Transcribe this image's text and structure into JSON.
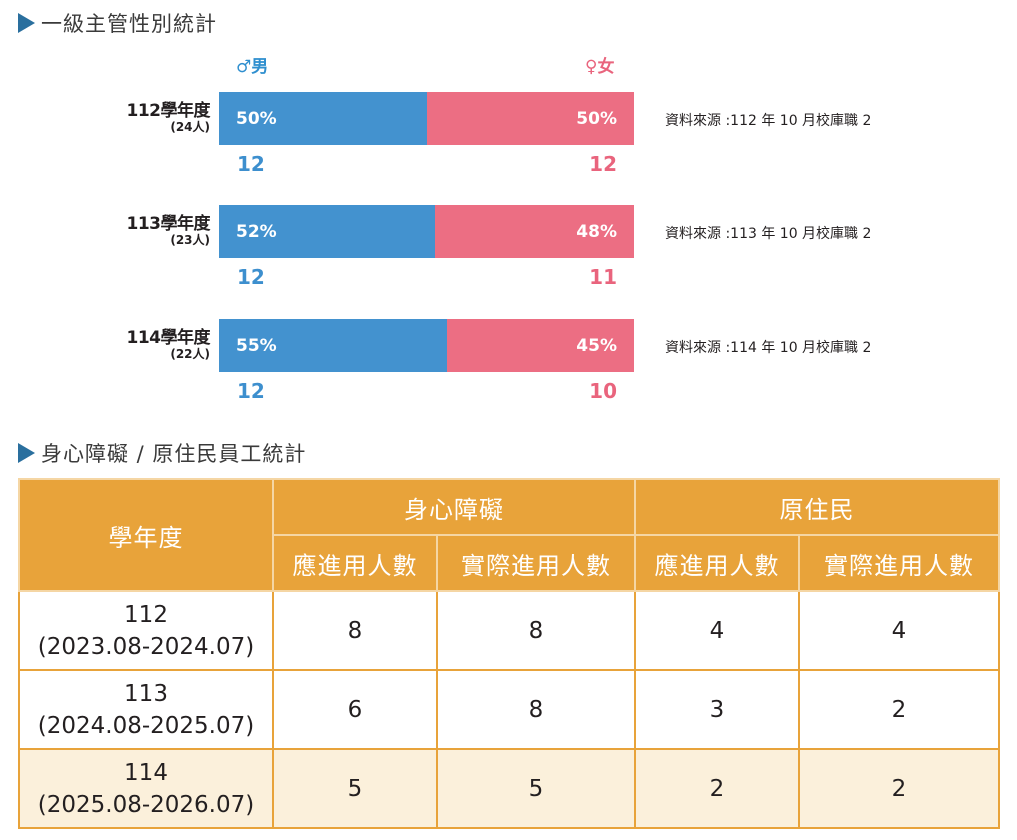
{
  "gender_section": {
    "title": "一級主管性別統計",
    "legend": {
      "male": "♂男",
      "female": "♀女"
    }
  },
  "chart_data": {
    "type": "bar",
    "stacked": true,
    "orientation": "horizontal",
    "title": "一級主管性別統計",
    "categories": [
      "112學年度",
      "113學年度",
      "114學年度"
    ],
    "totals": [
      "(24人)",
      "(23人)",
      "(22人)"
    ],
    "series": [
      {
        "name": "♂男",
        "color": "#4392cf",
        "percent_labels": [
          "50%",
          "52%",
          "55%"
        ],
        "percent": [
          50,
          52,
          55
        ],
        "counts": [
          "12",
          "12",
          "12"
        ]
      },
      {
        "name": "♀女",
        "color": "#ec6e83",
        "percent_labels": [
          "50%",
          "48%",
          "45%"
        ],
        "percent": [
          50,
          48,
          45
        ],
        "counts": [
          "12",
          "11",
          "10"
        ]
      }
    ],
    "sources": [
      "資料來源 :112 年 10 月校庫職 2",
      "資料來源 :113 年 10 月校庫職 2",
      "資料來源 :114 年 10 月校庫職 2"
    ]
  },
  "table_section": {
    "title": "身心障礙 / 原住民員工統計",
    "header": {
      "year": "學年度",
      "group1": "身心障礙",
      "group2": "原住民",
      "sub": [
        "應進用人數",
        "實際進用人數",
        "應進用人數",
        "實際進用人數"
      ]
    },
    "rows": [
      {
        "year": "112",
        "period": "(2023.08-2024.07)",
        "values": [
          "8",
          "8",
          "4",
          "4"
        ]
      },
      {
        "year": "113",
        "period": "(2024.08-2025.07)",
        "values": [
          "6",
          "8",
          "3",
          "2"
        ]
      },
      {
        "year": "114",
        "period": "(2025.08-2026.07)",
        "values": [
          "5",
          "5",
          "2",
          "2"
        ]
      }
    ]
  },
  "colors": {
    "accent": "#e8a33a",
    "male": "#4392cf",
    "female": "#ec6e83",
    "title_arrow": "#2a6f9e"
  }
}
